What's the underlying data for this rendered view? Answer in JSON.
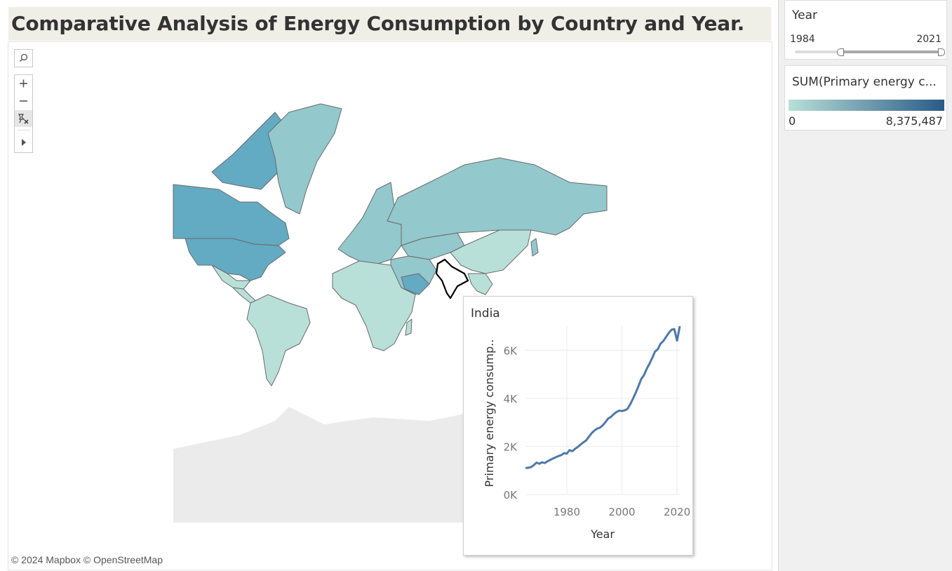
{
  "page": {
    "title": "Comparative Analysis of Energy Consumption by Country and Year."
  },
  "map": {
    "credits": "© 2024 Mapbox © OpenStreetMap",
    "highlighted_country": "India",
    "colors": {
      "low": "#b8e0d8",
      "mid": "#93c8cc",
      "high": "#63aac3",
      "ocean": "#ffffff",
      "antarctica": "#ebebeb",
      "border": "#6a6a6a"
    }
  },
  "toolbar": {
    "search_icon": "search-icon",
    "zoom_in_icon": "plus-icon",
    "zoom_out_icon": "minus-icon",
    "pin_icon": "unpin-icon",
    "expand_icon": "play-arrow-icon"
  },
  "filters": {
    "year": {
      "label": "Year",
      "min_label": "1984",
      "max_label": "2021",
      "range_start": 0.17,
      "range_end": 1.0
    },
    "legend": {
      "label": "SUM(Primary energy c...",
      "min_label": "0",
      "max_label": "8,375,487",
      "color_start": "#b8e0d8",
      "color_end": "#2a5a87"
    }
  },
  "tooltip": {
    "title": "India",
    "chart_data": {
      "type": "line",
      "title": "",
      "xlabel": "Year",
      "ylabel": "Primary energy consump..",
      "xlim": [
        1965,
        2021
      ],
      "ylim": [
        0,
        7000
      ],
      "xticks": [
        "1980",
        "2000",
        "2020"
      ],
      "yticks": [
        "0K",
        "2K",
        "4K",
        "6K"
      ],
      "line_color": "#4e79a7",
      "x": [
        1965,
        1966,
        1967,
        1968,
        1969,
        1970,
        1971,
        1972,
        1973,
        1974,
        1975,
        1976,
        1977,
        1978,
        1979,
        1980,
        1981,
        1982,
        1983,
        1984,
        1985,
        1986,
        1987,
        1988,
        1989,
        1990,
        1991,
        1992,
        1993,
        1994,
        1995,
        1996,
        1997,
        1998,
        1999,
        2000,
        2001,
        2002,
        2003,
        2004,
        2005,
        2006,
        2007,
        2008,
        2009,
        2010,
        2011,
        2012,
        2013,
        2014,
        2015,
        2016,
        2017,
        2018,
        2019,
        2020,
        2021
      ],
      "y": [
        1100,
        1110,
        1140,
        1220,
        1330,
        1280,
        1340,
        1310,
        1380,
        1440,
        1500,
        1550,
        1600,
        1640,
        1720,
        1700,
        1850,
        1800,
        1900,
        1980,
        2080,
        2170,
        2250,
        2400,
        2550,
        2660,
        2740,
        2780,
        2870,
        3010,
        3160,
        3230,
        3340,
        3430,
        3490,
        3470,
        3500,
        3560,
        3750,
        3980,
        4230,
        4510,
        4800,
        4960,
        5230,
        5440,
        5680,
        5940,
        6040,
        6270,
        6380,
        6550,
        6720,
        6850,
        6880,
        6400,
        7000
      ]
    }
  }
}
